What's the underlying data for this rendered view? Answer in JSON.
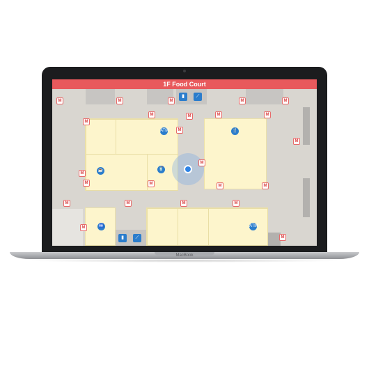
{
  "device": {
    "brand": "MacBook"
  },
  "map": {
    "title": "1F Food Court",
    "colors": {
      "header": "#e8595c",
      "floor": "#d9d6d0",
      "shop": "#fdf5cc",
      "marker": "#e86a6a",
      "poi": "#2b7dcc",
      "location": "#2f84e6"
    },
    "markers": [
      "M",
      "M",
      "M",
      "M",
      "M",
      "M",
      "M",
      "M",
      "M",
      "M",
      "M",
      "M",
      "M",
      "M",
      "M",
      "M",
      "M",
      "M",
      "M",
      "M",
      "M",
      "M",
      "M",
      "M"
    ],
    "pois": {
      "atm_top": "ATM",
      "atm_bottom": "ATM",
      "restaurant": "🍴",
      "cafe": "☕",
      "drink": "🥤",
      "restroom": "🚻",
      "elevator_top": "▮",
      "escalator_top": "⟋",
      "elevator_bottom": "▮",
      "escalator_bottom": "⟋"
    }
  }
}
